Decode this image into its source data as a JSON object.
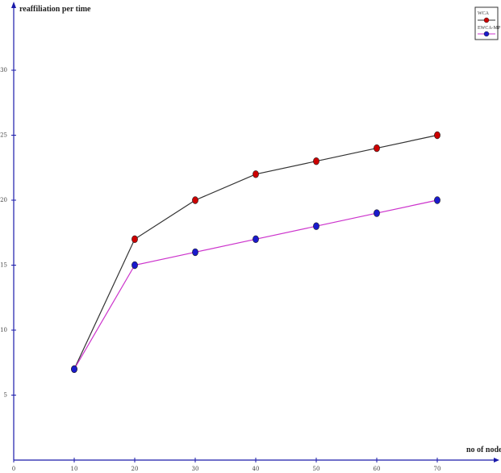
{
  "chart_data": {
    "type": "line",
    "xlabel": "no of nodes",
    "ylabel": "reaffiliation per time",
    "x": [
      10,
      20,
      30,
      40,
      50,
      60,
      70
    ],
    "xlim": [
      0,
      80
    ],
    "ylim": [
      0,
      35
    ],
    "x_ticks": [
      0,
      10,
      20,
      30,
      40,
      50,
      60,
      70
    ],
    "y_ticks": [
      5,
      10,
      15,
      20,
      25,
      30
    ],
    "x_tick_labels": [
      "0",
      "10",
      "20",
      "30",
      "40",
      "50",
      "60",
      "70"
    ],
    "y_tick_labels": [
      "5",
      "10",
      "15",
      "20",
      "25",
      "30"
    ],
    "legend_position": "top-right",
    "grid": false,
    "series": [
      {
        "name": "WCA",
        "values": [
          7,
          17,
          20,
          22,
          23,
          24,
          25
        ],
        "line_color": "#333333",
        "marker_color": "#cc0000"
      },
      {
        "name": "EWCA-MP",
        "values": [
          7,
          15,
          16,
          17,
          18,
          19,
          20
        ],
        "line_color": "#cc33cc",
        "marker_color": "#1a1acc"
      }
    ],
    "axis_color": "#1a1aaa"
  }
}
